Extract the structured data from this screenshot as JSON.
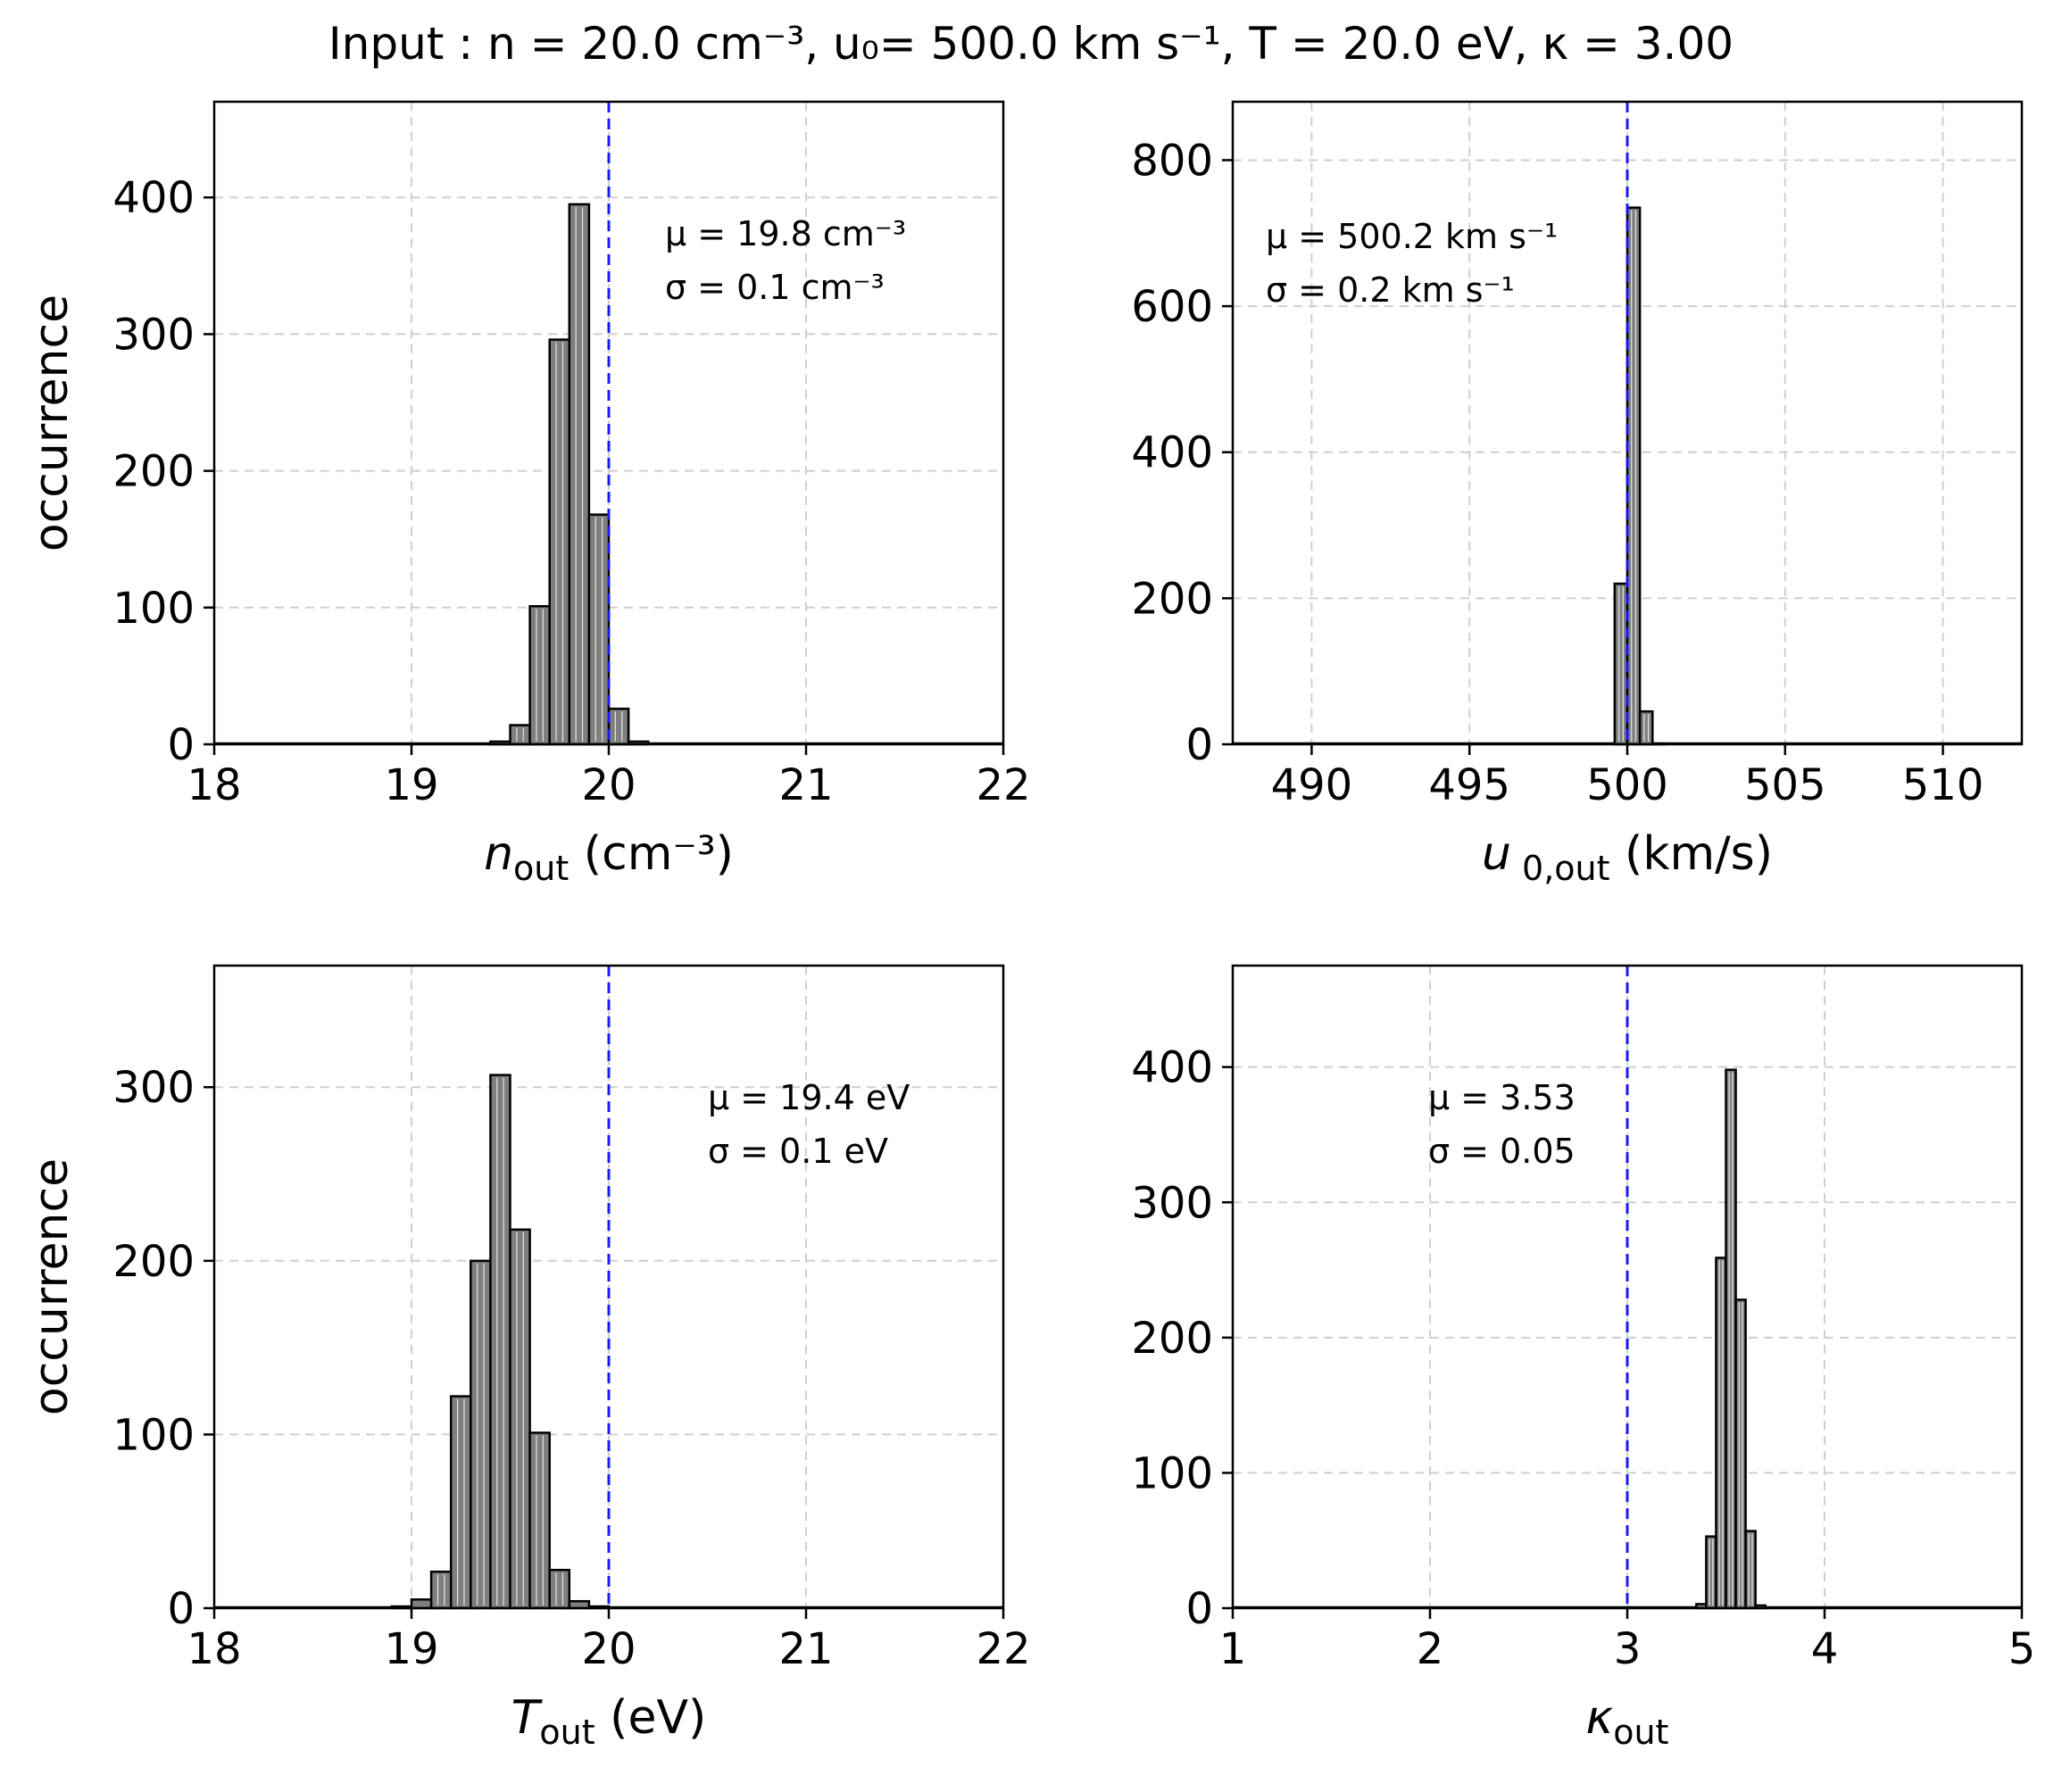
{
  "figure_title": "Input : n = 20.0 cm⁻³, u₀= 500.0 km s⁻¹, T = 20.0 eV, κ = 3.00",
  "colors": {
    "bar_fill": "#7f7f7f",
    "bar_edge": "#000000",
    "reference_line": "#1a1aff",
    "grid": "#cfcfcf"
  },
  "chart_data": [
    {
      "type": "bar",
      "subtype": "histogram",
      "position": "top-left",
      "xlabel": "n_out (cm⁻³)",
      "xlabel_main": "n",
      "xlabel_sub": "out",
      "xlabel_unit": " (cm⁻³)",
      "ylabel": "occurrence",
      "xlim": [
        18,
        22
      ],
      "ylim": [
        0,
        470
      ],
      "xticks": [
        18,
        19,
        20,
        21,
        22
      ],
      "yticks": [
        0,
        100,
        200,
        300,
        400
      ],
      "grid": true,
      "reference_value": 20.0,
      "bin_width": 0.1,
      "bins": [
        {
          "x0": 19.4,
          "x1": 19.5,
          "count": 2
        },
        {
          "x0": 19.5,
          "x1": 19.6,
          "count": 14
        },
        {
          "x0": 19.6,
          "x1": 19.7,
          "count": 101
        },
        {
          "x0": 19.7,
          "x1": 19.8,
          "count": 296
        },
        {
          "x0": 19.8,
          "x1": 19.9,
          "count": 395
        },
        {
          "x0": 19.9,
          "x1": 20.0,
          "count": 168
        },
        {
          "x0": 20.0,
          "x1": 20.1,
          "count": 26
        },
        {
          "x0": 20.1,
          "x1": 20.2,
          "count": 2
        }
      ],
      "annotation_mu": "μ = 19.8 cm⁻³",
      "annotation_sigma": "σ = 0.1 cm⁻³"
    },
    {
      "type": "bar",
      "subtype": "histogram",
      "position": "top-right",
      "xlabel": "u 0,out (km/s)",
      "xlabel_main": "u",
      "xlabel_sub": " 0,out",
      "xlabel_unit": " (km/s)",
      "ylabel": "",
      "xlim": [
        487.5,
        512.5
      ],
      "ylim": [
        0,
        880
      ],
      "xticks": [
        490,
        495,
        500,
        505,
        510
      ],
      "yticks": [
        0,
        200,
        400,
        600,
        800
      ],
      "grid": true,
      "reference_value": 500.0,
      "bin_width": 0.4,
      "bins": [
        {
          "x0": 499.6,
          "x1": 500.0,
          "count": 220
        },
        {
          "x0": 500.0,
          "x1": 500.4,
          "count": 735
        },
        {
          "x0": 500.4,
          "x1": 500.8,
          "count": 45
        },
        {
          "x0": 500.8,
          "x1": 501.2,
          "count": 1
        }
      ],
      "annotation_mu": "μ = 500.2 km s⁻¹",
      "annotation_sigma": "σ = 0.2 km s⁻¹"
    },
    {
      "type": "bar",
      "subtype": "histogram",
      "position": "bottom-left",
      "xlabel": "T_out (eV)",
      "xlabel_main": "T",
      "xlabel_sub": "out",
      "xlabel_unit": " (eV)",
      "ylabel": "occurrence",
      "xlim": [
        18,
        22
      ],
      "ylim": [
        0,
        370
      ],
      "xticks": [
        18,
        19,
        20,
        21,
        22
      ],
      "yticks": [
        0,
        100,
        200,
        300
      ],
      "grid": true,
      "reference_value": 20.0,
      "bin_width": 0.1,
      "bins": [
        {
          "x0": 18.9,
          "x1": 19.0,
          "count": 1
        },
        {
          "x0": 19.0,
          "x1": 19.1,
          "count": 5
        },
        {
          "x0": 19.1,
          "x1": 19.2,
          "count": 21
        },
        {
          "x0": 19.2,
          "x1": 19.3,
          "count": 122
        },
        {
          "x0": 19.3,
          "x1": 19.4,
          "count": 200
        },
        {
          "x0": 19.4,
          "x1": 19.5,
          "count": 307
        },
        {
          "x0": 19.5,
          "x1": 19.6,
          "count": 218
        },
        {
          "x0": 19.6,
          "x1": 19.7,
          "count": 101
        },
        {
          "x0": 19.7,
          "x1": 19.8,
          "count": 22
        },
        {
          "x0": 19.8,
          "x1": 19.9,
          "count": 4
        },
        {
          "x0": 19.9,
          "x1": 20.0,
          "count": 1
        }
      ],
      "annotation_mu": "μ = 19.4 eV",
      "annotation_sigma": "σ = 0.1 eV"
    },
    {
      "type": "bar",
      "subtype": "histogram",
      "position": "bottom-right",
      "xlabel": "κ_out",
      "xlabel_main": "κ",
      "xlabel_sub": "out",
      "xlabel_unit": "",
      "ylabel": "",
      "xlim": [
        1,
        5
      ],
      "ylim": [
        0,
        475
      ],
      "xticks": [
        1,
        2,
        3,
        4,
        5
      ],
      "yticks": [
        0,
        100,
        200,
        300,
        400
      ],
      "grid": true,
      "reference_value": 3.0,
      "bin_width": 0.05,
      "bins": [
        {
          "x0": 3.35,
          "x1": 3.4,
          "count": 3
        },
        {
          "x0": 3.4,
          "x1": 3.45,
          "count": 53
        },
        {
          "x0": 3.45,
          "x1": 3.5,
          "count": 259
        },
        {
          "x0": 3.5,
          "x1": 3.55,
          "count": 398
        },
        {
          "x0": 3.55,
          "x1": 3.6,
          "count": 228
        },
        {
          "x0": 3.6,
          "x1": 3.65,
          "count": 57
        },
        {
          "x0": 3.65,
          "x1": 3.7,
          "count": 2
        }
      ],
      "annotation_mu": "μ = 3.53",
      "annotation_sigma": "σ = 0.05"
    }
  ]
}
